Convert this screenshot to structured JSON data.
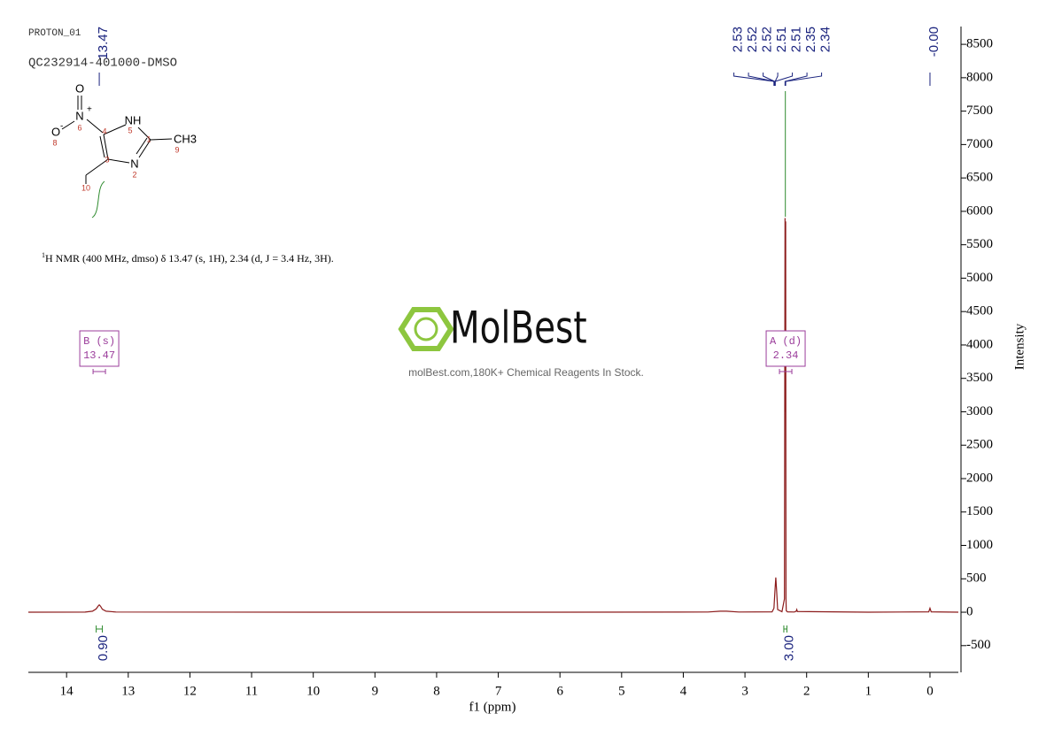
{
  "chart_data": {
    "type": "nmr",
    "header": [
      "PROTON_01",
      "QC232914-401000-DMSO"
    ],
    "molecule": {
      "atoms": [
        "O",
        "N",
        "+",
        "O",
        "-",
        "NH",
        "CH3",
        "N"
      ],
      "numbers": [
        "6",
        "4",
        "5",
        "1",
        "9",
        "3",
        "2",
        "8",
        "10"
      ]
    },
    "nmr_text": {
      "sup": "1",
      "text": "H NMR (400 MHz, dmso) δ 13.47 (s, 1H), 2.34 (d, J = 3.4 Hz, 3H)."
    },
    "watermark": {
      "brand": "MolBest",
      "tagline": "molBest.com,180K+ Chemical Reagents In Stock."
    },
    "x_label": "f1 (ppm)",
    "y_label": "Intensity",
    "xlim": [
      14.62,
      -0.46
    ],
    "xticks": [
      14,
      13,
      12,
      11,
      10,
      9,
      8,
      7,
      6,
      5,
      4,
      3,
      2,
      1,
      0
    ],
    "ylim": [
      -900,
      8700
    ],
    "yticks": [
      -500,
      0,
      500,
      1000,
      1500,
      2000,
      2500,
      3000,
      3500,
      4000,
      4500,
      5000,
      5500,
      6000,
      6500,
      7000,
      7500,
      8000,
      8500
    ],
    "color": "#8b1a1a",
    "x": [
      14.62,
      13.7,
      13.58,
      13.52,
      13.49,
      13.47,
      13.45,
      13.42,
      13.36,
      13.2,
      10,
      6,
      3.6,
      3.4,
      3.3,
      3.1,
      2.56,
      2.53,
      2.515,
      2.5,
      2.485,
      2.47,
      2.4,
      2.36,
      2.35,
      2.345,
      2.34,
      2.335,
      2.33,
      2.31,
      2.2,
      2.17,
      2.16,
      2.15,
      1.0,
      0.02,
      0.0,
      -0.02,
      -0.46
    ],
    "values": [
      0,
      2,
      15,
      50,
      90,
      110,
      90,
      45,
      15,
      3,
      0,
      0,
      3,
      15,
      15,
      3,
      5,
      60,
      300,
      520,
      300,
      40,
      8,
      200,
      5900,
      3000,
      5850,
      200,
      20,
      5,
      3,
      15,
      40,
      10,
      0,
      5,
      60,
      5,
      0
    ],
    "peak_groups": [
      {
        "peaks": [
          13.47
        ]
      },
      {
        "peaks": [
          2.53,
          2.52,
          2.52,
          2.51,
          2.51,
          2.35,
          2.34
        ]
      },
      {
        "peaks": [
          {
            "value": 0,
            "label": "-0.00"
          }
        ]
      }
    ],
    "integrals": [
      {
        "range": [
          13.52,
          13.42
        ],
        "value": 0.9,
        "value_label": "0.90"
      },
      {
        "range": [
          2.37,
          2.32
        ],
        "value": 3.0,
        "value_label": "3.00"
      }
    ],
    "multiplets": [
      {
        "name": "B (s)",
        "shift": 13.47
      },
      {
        "name": "A (d)",
        "shift": 2.34
      }
    ]
  }
}
